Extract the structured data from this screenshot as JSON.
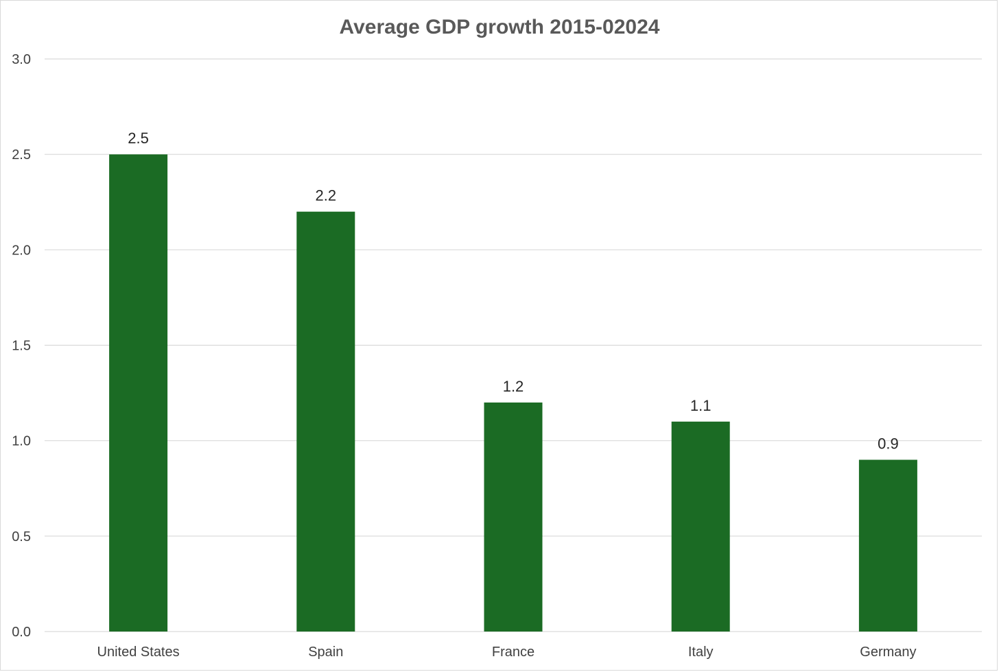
{
  "chart_data": {
    "type": "bar",
    "title": "Average GDP growth 2015-02024",
    "categories": [
      "United States",
      "Spain",
      "France",
      "Italy",
      "Germany"
    ],
    "values": [
      2.5,
      2.2,
      1.2,
      1.1,
      0.9
    ],
    "data_labels": [
      "2.5",
      "2.2",
      "1.2",
      "1.1",
      "0.9"
    ],
    "ylim": [
      0,
      3.0
    ],
    "y_ticks": [
      "0.0",
      "0.5",
      "1.0",
      "1.5",
      "2.0",
      "2.5",
      "3.0"
    ],
    "xlabel": "",
    "ylabel": "",
    "grid": true,
    "legend": "none",
    "bar_color": "#1b6b24",
    "grid_color": "#d9d9d9"
  }
}
